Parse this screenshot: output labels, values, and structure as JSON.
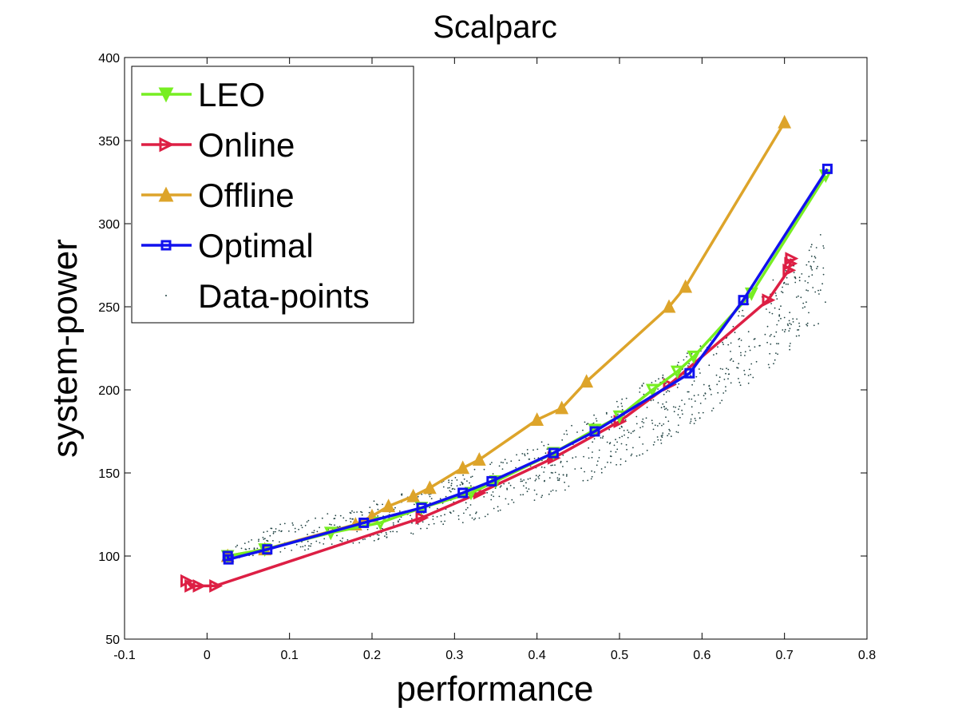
{
  "chart_data": {
    "type": "line",
    "title": "Scalparc",
    "xlabel": "performance",
    "ylabel": "system-power",
    "xlim": [
      -0.1,
      0.8
    ],
    "ylim": [
      50,
      400
    ],
    "xticks": [
      -0.1,
      0,
      0.1,
      0.2,
      0.3,
      0.4,
      0.5,
      0.6,
      0.7,
      0.8
    ],
    "xtick_labels": [
      "-0.1",
      "0",
      "0.1",
      "0.2",
      "0.3",
      "0.4",
      "0.5",
      "0.6",
      "0.7",
      "0.8"
    ],
    "yticks": [
      50,
      100,
      150,
      200,
      250,
      300,
      350,
      400
    ],
    "ytick_labels": [
      "50",
      "100",
      "150",
      "200",
      "250",
      "300",
      "350",
      "400"
    ],
    "grid": false,
    "legend_position": "top-left",
    "series": [
      {
        "name": "LEO",
        "color": "#77ee22",
        "marker": "triangle-down",
        "points": [
          [
            0.025,
            100
          ],
          [
            0.07,
            104
          ],
          [
            0.15,
            114
          ],
          [
            0.21,
            120
          ],
          [
            0.26,
            129
          ],
          [
            0.32,
            138
          ],
          [
            0.35,
            145
          ],
          [
            0.42,
            162
          ],
          [
            0.47,
            176
          ],
          [
            0.5,
            184
          ],
          [
            0.54,
            200
          ],
          [
            0.57,
            211
          ],
          [
            0.59,
            220
          ],
          [
            0.66,
            258
          ],
          [
            0.75,
            329
          ]
        ]
      },
      {
        "name": "Online",
        "color": "#dd1f44",
        "marker": "triangle-right",
        "points": [
          [
            -0.025,
            85
          ],
          [
            -0.02,
            82
          ],
          [
            -0.01,
            82
          ],
          [
            0.01,
            82
          ],
          [
            0.26,
            123
          ],
          [
            0.33,
            138
          ],
          [
            0.42,
            159
          ],
          [
            0.5,
            181
          ],
          [
            0.56,
            203
          ],
          [
            0.68,
            254
          ],
          [
            0.705,
            272
          ],
          [
            0.707,
            276
          ],
          [
            0.708,
            279
          ]
        ]
      },
      {
        "name": "Offline",
        "color": "#dda42a",
        "marker": "triangle-up",
        "points": [
          [
            0.025,
            100
          ],
          [
            0.07,
            104
          ],
          [
            0.18,
            119
          ],
          [
            0.2,
            124
          ],
          [
            0.22,
            130
          ],
          [
            0.25,
            136
          ],
          [
            0.27,
            141
          ],
          [
            0.31,
            153
          ],
          [
            0.33,
            158
          ],
          [
            0.4,
            182
          ],
          [
            0.43,
            189
          ],
          [
            0.46,
            205
          ],
          [
            0.56,
            250
          ],
          [
            0.58,
            262
          ],
          [
            0.7,
            361
          ]
        ]
      },
      {
        "name": "Optimal",
        "color": "#1111ee",
        "marker": "square",
        "points": [
          [
            0.025,
            100
          ],
          [
            0.026,
            98
          ],
          [
            0.073,
            104
          ],
          [
            0.19,
            120
          ],
          [
            0.26,
            129
          ],
          [
            0.31,
            138
          ],
          [
            0.345,
            145
          ],
          [
            0.42,
            162
          ],
          [
            0.47,
            175
          ],
          [
            0.585,
            210
          ],
          [
            0.65,
            254
          ],
          [
            0.752,
            333
          ]
        ]
      },
      {
        "name": "Data-points",
        "color": "#224444",
        "marker": "dot"
      }
    ]
  }
}
